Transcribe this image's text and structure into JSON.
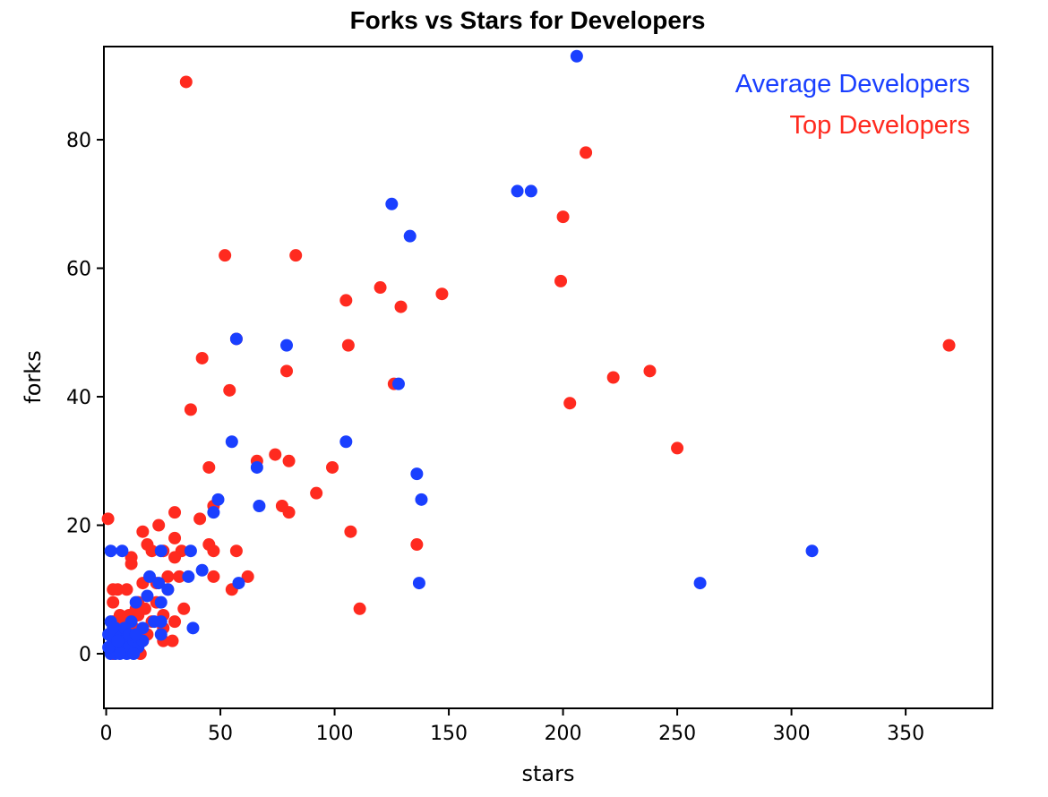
{
  "chart_data": {
    "type": "scatter",
    "title": "Forks vs Stars for Developers",
    "xlabel": "stars",
    "ylabel": "forks",
    "xlim": [
      -1,
      388
    ],
    "ylim": [
      -8.5,
      94.5
    ],
    "xticks": [
      0,
      50,
      100,
      150,
      200,
      250,
      300,
      350
    ],
    "yticks": [
      0,
      20,
      40,
      60,
      80
    ],
    "grid": false,
    "legend_position": "top-right",
    "series": [
      {
        "name": "Top Developers",
        "color": "#ff2a1f",
        "points": [
          [
            35,
            89
          ],
          [
            210,
            78
          ],
          [
            200,
            68
          ],
          [
            52,
            62
          ],
          [
            83,
            62
          ],
          [
            199,
            58
          ],
          [
            120,
            57
          ],
          [
            147,
            56
          ],
          [
            105,
            55
          ],
          [
            129,
            54
          ],
          [
            57,
            49
          ],
          [
            106,
            48
          ],
          [
            369,
            48
          ],
          [
            42,
            46
          ],
          [
            79,
            44
          ],
          [
            238,
            44
          ],
          [
            222,
            43
          ],
          [
            126,
            42
          ],
          [
            54,
            41
          ],
          [
            203,
            39
          ],
          [
            37,
            38
          ],
          [
            250,
            32
          ],
          [
            66,
            30
          ],
          [
            74,
            31
          ],
          [
            80,
            30
          ],
          [
            45,
            29
          ],
          [
            99,
            29
          ],
          [
            92,
            25
          ],
          [
            77,
            23
          ],
          [
            47,
            23
          ],
          [
            80,
            22
          ],
          [
            30,
            22
          ],
          [
            0.8,
            21
          ],
          [
            41,
            21
          ],
          [
            23,
            20
          ],
          [
            16,
            19
          ],
          [
            107,
            19
          ],
          [
            30,
            18
          ],
          [
            18,
            17
          ],
          [
            45,
            17
          ],
          [
            136,
            17
          ],
          [
            20,
            16
          ],
          [
            25,
            16
          ],
          [
            33,
            16
          ],
          [
            47,
            16
          ],
          [
            57,
            16
          ],
          [
            11,
            15
          ],
          [
            30,
            15
          ],
          [
            11,
            14
          ],
          [
            27,
            12
          ],
          [
            32,
            12
          ],
          [
            47,
            12
          ],
          [
            62,
            12
          ],
          [
            3,
            10
          ],
          [
            5,
            10
          ],
          [
            9,
            10
          ],
          [
            16,
            11
          ],
          [
            22,
            11
          ],
          [
            55,
            10
          ],
          [
            27,
            10
          ],
          [
            3,
            8
          ],
          [
            14,
            8
          ],
          [
            22,
            8
          ],
          [
            13,
            7
          ],
          [
            17,
            7
          ],
          [
            34,
            7
          ],
          [
            111,
            7
          ],
          [
            6,
            6
          ],
          [
            10,
            6
          ],
          [
            14,
            6
          ],
          [
            25,
            6
          ],
          [
            3,
            5
          ],
          [
            8,
            5
          ],
          [
            20,
            5
          ],
          [
            30,
            5
          ],
          [
            5,
            4
          ],
          [
            12,
            4
          ],
          [
            25,
            4
          ],
          [
            4,
            3
          ],
          [
            9,
            3
          ],
          [
            18,
            3
          ],
          [
            7,
            2
          ],
          [
            16,
            2
          ],
          [
            25,
            2
          ],
          [
            29,
            2
          ],
          [
            2,
            1
          ],
          [
            9,
            1
          ],
          [
            15,
            0
          ],
          [
            3,
            0
          ],
          [
            11,
            2
          ]
        ]
      },
      {
        "name": "Average Developers",
        "color": "#1a3fff",
        "points": [
          [
            206,
            93
          ],
          [
            180,
            72
          ],
          [
            186,
            72
          ],
          [
            125,
            70
          ],
          [
            133,
            65
          ],
          [
            57,
            49
          ],
          [
            79,
            48
          ],
          [
            128,
            42
          ],
          [
            55,
            33
          ],
          [
            105,
            33
          ],
          [
            66,
            29
          ],
          [
            136,
            28
          ],
          [
            138,
            24
          ],
          [
            49,
            24
          ],
          [
            67,
            23
          ],
          [
            47,
            22
          ],
          [
            2,
            16
          ],
          [
            7,
            16
          ],
          [
            24,
            16
          ],
          [
            37,
            16
          ],
          [
            309,
            16
          ],
          [
            19,
            12
          ],
          [
            23,
            11
          ],
          [
            36,
            12
          ],
          [
            42,
            13
          ],
          [
            58,
            11
          ],
          [
            137,
            11
          ],
          [
            260,
            11
          ],
          [
            27,
            10
          ],
          [
            18,
            9
          ],
          [
            13,
            8
          ],
          [
            24,
            8
          ],
          [
            11,
            5
          ],
          [
            21,
            5
          ],
          [
            24,
            5
          ],
          [
            16,
            4
          ],
          [
            24,
            3
          ],
          [
            38,
            4
          ],
          [
            2,
            5
          ],
          [
            4,
            4
          ],
          [
            6,
            3
          ],
          [
            3,
            2
          ],
          [
            5,
            1
          ],
          [
            1,
            3
          ],
          [
            2,
            0
          ],
          [
            4,
            0
          ],
          [
            7,
            1
          ],
          [
            9,
            0
          ],
          [
            8,
            2
          ],
          [
            10,
            1
          ],
          [
            6,
            0
          ],
          [
            12,
            2
          ],
          [
            14,
            1
          ],
          [
            16,
            2
          ],
          [
            1,
            1
          ],
          [
            3,
            4
          ],
          [
            5,
            2
          ],
          [
            8,
            4
          ],
          [
            10,
            3
          ],
          [
            12,
            0
          ],
          [
            13,
            3
          ]
        ]
      }
    ]
  }
}
